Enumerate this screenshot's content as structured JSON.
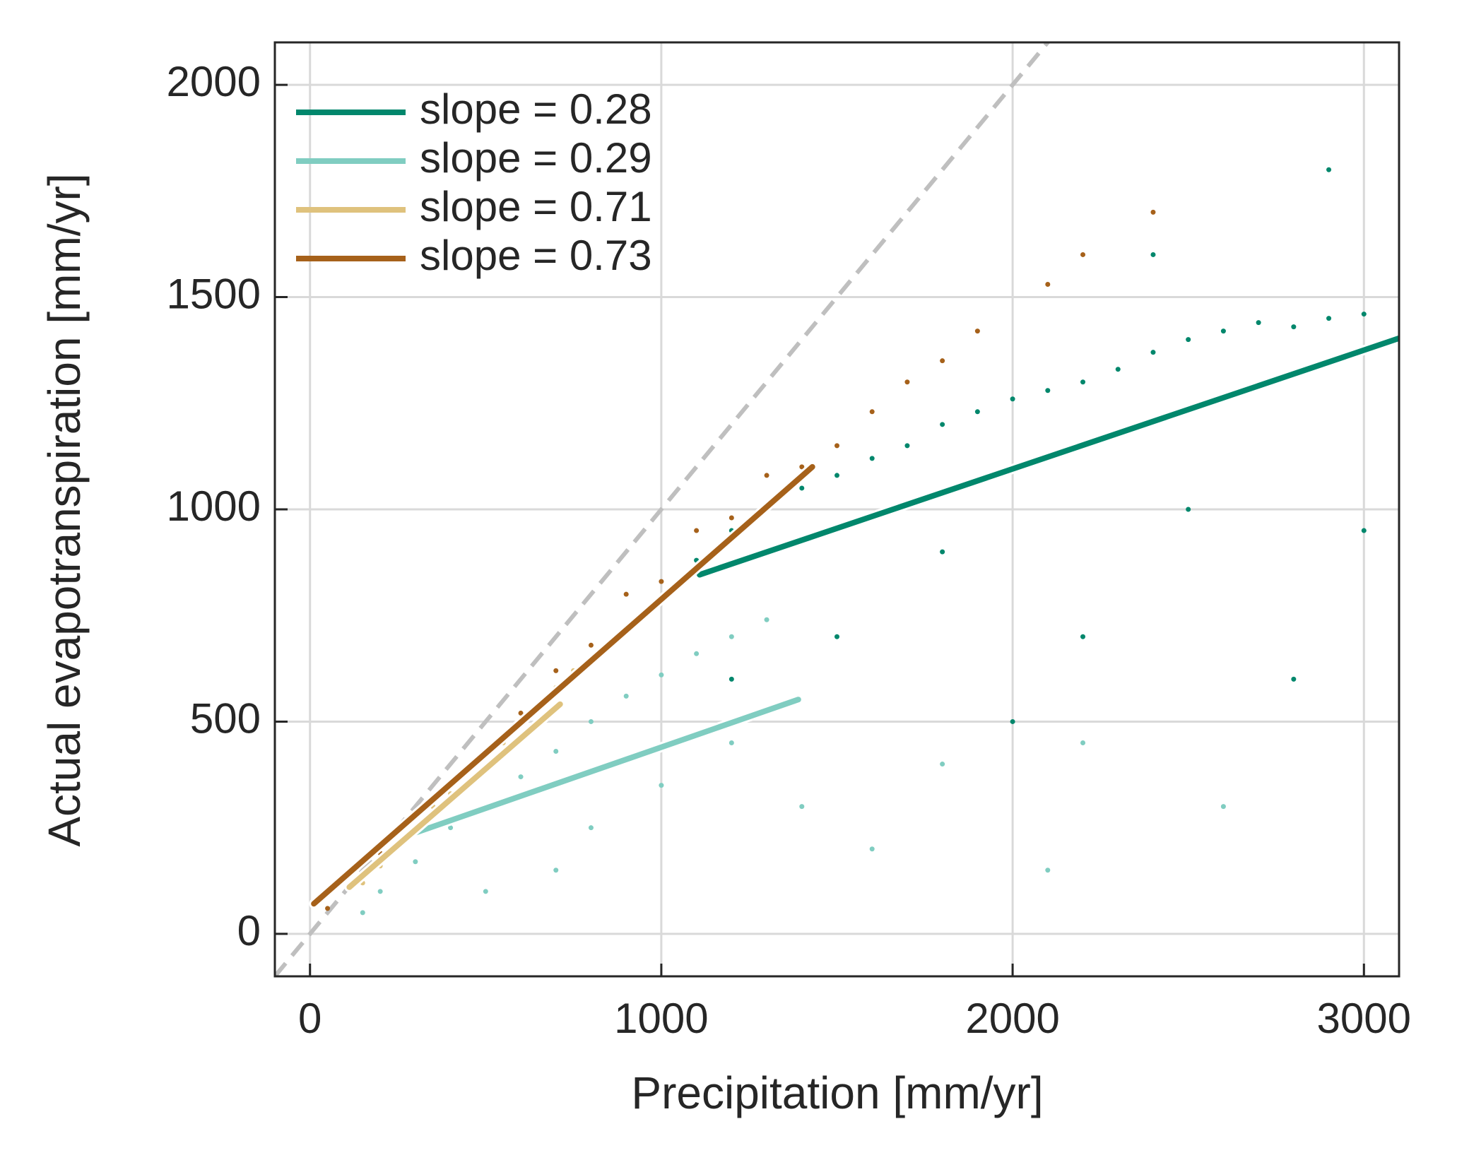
{
  "chart_data": {
    "type": "scatter",
    "xlabel": "Precipitation [mm/yr]",
    "ylabel": "Actual evapotranspiration [mm/yr]",
    "xlim": [
      -100,
      3100
    ],
    "ylim": [
      -100,
      2100
    ],
    "xticks": [
      0,
      1000,
      2000,
      3000
    ],
    "yticks": [
      0,
      500,
      1000,
      1500,
      2000
    ],
    "grid": true,
    "identity_line": true,
    "legend": "upper left",
    "series": [
      {
        "name": "slope = 0.28",
        "color": "#01876c",
        "x": [
          1100,
          1200,
          1300,
          1400,
          1500,
          1600,
          1700,
          1800,
          1900,
          2000,
          2100,
          2200,
          2300,
          2400,
          2500,
          2600,
          2700,
          2800,
          2900,
          3000,
          1800,
          2200,
          2500,
          2800,
          3000,
          1500,
          2000,
          2400,
          2900,
          1200
        ],
        "values": [
          880,
          950,
          1000,
          1050,
          1080,
          1120,
          1150,
          1200,
          1230,
          1260,
          1280,
          1300,
          1330,
          1370,
          1400,
          1420,
          1440,
          1430,
          1450,
          1460,
          900,
          700,
          1000,
          600,
          950,
          700,
          500,
          1600,
          1800,
          600
        ],
        "fit_x": [
          1109,
          3100
        ],
        "fit_values": [
          846,
          1403
        ]
      },
      {
        "name": "slope = 0.29",
        "color": "#80cdc1",
        "x": [
          150,
          200,
          300,
          400,
          500,
          600,
          700,
          800,
          900,
          1000,
          1100,
          1200,
          1300,
          500,
          800,
          1000,
          1400,
          1600,
          1800,
          2200,
          2600,
          2100,
          700,
          1200
        ],
        "values": [
          50,
          100,
          170,
          250,
          300,
          370,
          430,
          500,
          560,
          610,
          660,
          700,
          740,
          100,
          250,
          350,
          300,
          200,
          400,
          450,
          300,
          150,
          150,
          450
        ],
        "fit_x": [
          292,
          1390
        ],
        "fit_values": [
          236,
          552
        ]
      },
      {
        "name": "slope = 0.71",
        "color": "#dfc27d",
        "x": [
          150,
          200,
          300,
          400,
          500,
          600,
          700,
          750,
          350,
          550
        ],
        "values": [
          120,
          160,
          240,
          330,
          420,
          500,
          580,
          620,
          300,
          450
        ],
        "fit_x": [
          112,
          712
        ],
        "fit_values": [
          110,
          541
        ]
      },
      {
        "name": "slope = 0.73",
        "color": "#a6611a",
        "x": [
          50,
          200,
          400,
          600,
          800,
          1000,
          1200,
          1400,
          1600,
          1800,
          1900,
          2100,
          2200,
          2400,
          900,
          1100,
          1300,
          1500,
          1700,
          700
        ],
        "values": [
          60,
          190,
          360,
          520,
          680,
          830,
          980,
          1100,
          1230,
          1350,
          1420,
          1530,
          1600,
          1700,
          800,
          950,
          1080,
          1150,
          1300,
          620
        ],
        "fit_x": [
          11,
          1430
        ],
        "fit_values": [
          71,
          1100
        ]
      }
    ]
  }
}
